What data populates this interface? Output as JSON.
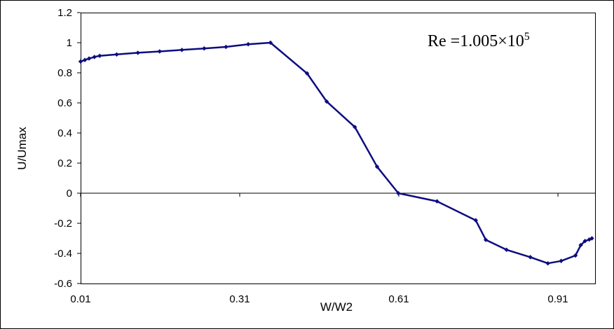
{
  "chart_data": {
    "type": "line",
    "title": "",
    "xlabel": "W/W2",
    "ylabel": "U/Umax",
    "xlim": [
      0.01,
      0.98
    ],
    "ylim": [
      -0.6,
      1.2
    ],
    "x_ticks": [
      0.01,
      0.31,
      0.61,
      0.91
    ],
    "x_tick_labels": [
      "0.01",
      "0.31",
      "0.61",
      "0.91"
    ],
    "y_ticks": [
      -0.6,
      -0.4,
      -0.2,
      0,
      0.2,
      0.4,
      0.6,
      0.8,
      1,
      1.2
    ],
    "y_tick_labels": [
      "-0.6",
      "-0.4",
      "-0.2",
      "0",
      "0.2",
      "0.4",
      "0.6",
      "0.8",
      "1",
      "1.2"
    ],
    "grid": false,
    "legend": "none",
    "annotation": {
      "text_prefix": "Re =1.005×10",
      "superscript": "5"
    },
    "series": [
      {
        "color": "#0d0d80",
        "x": [
          0.01,
          0.018,
          0.026,
          0.036,
          0.046,
          0.078,
          0.118,
          0.159,
          0.201,
          0.243,
          0.284,
          0.326,
          0.368,
          0.437,
          0.474,
          0.527,
          0.569,
          0.609,
          0.682,
          0.755,
          0.774,
          0.813,
          0.858,
          0.891,
          0.916,
          0.943,
          0.953,
          0.961,
          0.969,
          0.974
        ],
        "y": [
          0.875,
          0.885,
          0.895,
          0.905,
          0.913,
          0.922,
          0.933,
          0.942,
          0.952,
          0.962,
          0.972,
          0.99,
          1.0,
          0.796,
          0.609,
          0.44,
          0.176,
          0.0,
          -0.054,
          -0.18,
          -0.31,
          -0.376,
          -0.425,
          -0.466,
          -0.45,
          -0.414,
          -0.345,
          -0.318,
          -0.308,
          -0.3
        ]
      }
    ]
  }
}
